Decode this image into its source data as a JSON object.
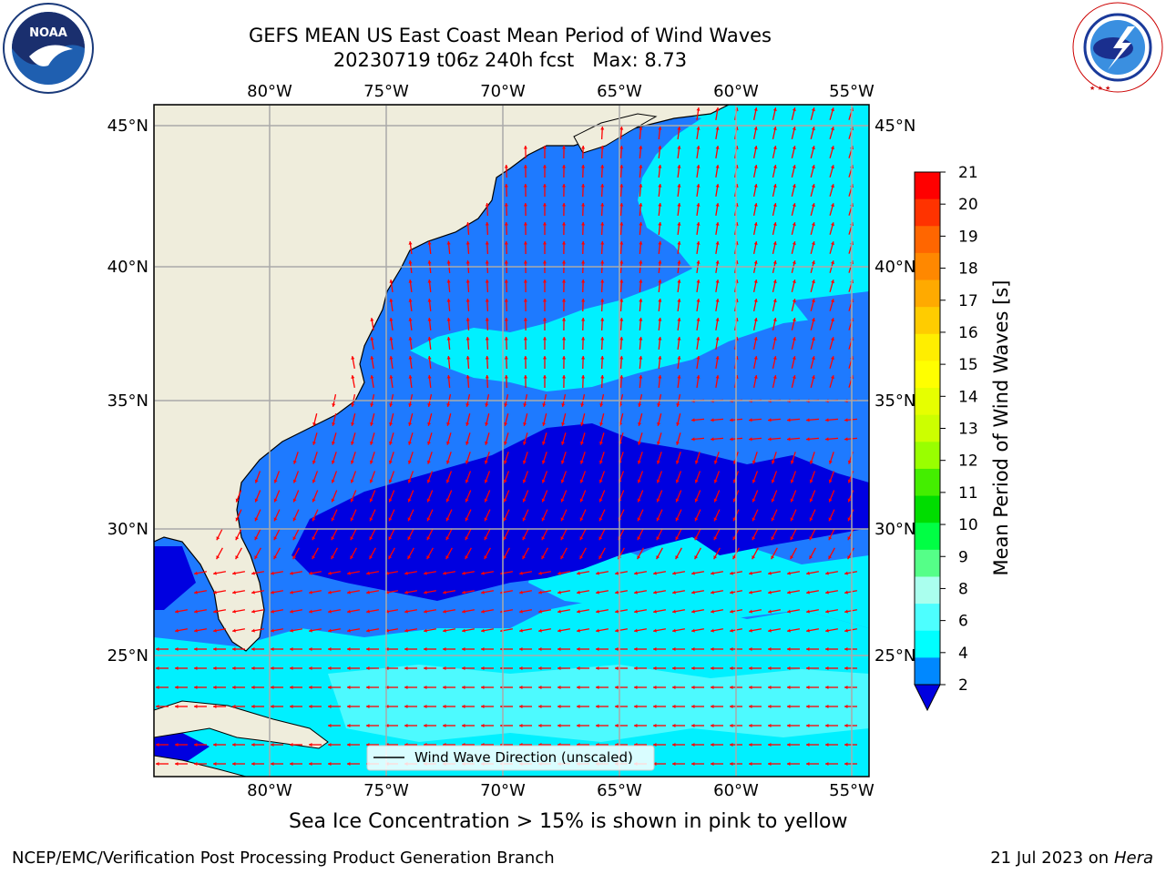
{
  "header": {
    "title": "GEFS MEAN US East Coast Mean Period of Wind Waves",
    "subtitle": "20230719 t06z 240h fcst   Max: 8.73"
  },
  "logos": {
    "left_text": "NOAA",
    "left_ring": "NATIONAL OCEANIC AND ATMOSPHERIC ADMINISTRATION · U.S. DEPARTMENT OF COMMERCE",
    "right_ring": "NATIONAL WEATHER SERVICE"
  },
  "map": {
    "lon_labels": [
      "80°W",
      "75°W",
      "70°W",
      "65°W",
      "60°W",
      "55°W"
    ],
    "lat_labels": [
      "45°N",
      "40°N",
      "35°N",
      "30°N",
      "25°N"
    ],
    "legend_label": "Wind Wave Direction (unscaled)",
    "colors": {
      "land": "#efeddc",
      "ocean_2_4": "#1e7aff",
      "ocean_4_6": "#00f0ff",
      "ocean_6_8": "#4dfaff",
      "ocean_below_2": "#0000e0",
      "arrow": "#ff0000",
      "grid": "#aaaaaa"
    }
  },
  "colorbar": {
    "label": "Mean Period of Wind Waves [s]",
    "ticks": [
      "21",
      "20",
      "19",
      "18",
      "17",
      "16",
      "15",
      "14",
      "13",
      "12",
      "11",
      "10",
      "9",
      "8",
      "6",
      "4",
      "2"
    ],
    "colors": [
      "#ff0000",
      "#ff3300",
      "#ff6600",
      "#ff8800",
      "#ffaa00",
      "#ffcc00",
      "#ffee00",
      "#ffff00",
      "#e6ff00",
      "#ccff00",
      "#99ff00",
      "#44ee00",
      "#00dd00",
      "#00ff44",
      "#55ff88",
      "#aaffee",
      "#4dffff",
      "#00ffff",
      "#0088ff"
    ]
  },
  "captions": {
    "sea_ice": "Sea Ice Concentration > 15% is shown in pink to yellow",
    "footer_left": "NCEP/EMC/Verification Post Processing Product Generation Branch",
    "footer_date": "21 Jul 2023 on ",
    "footer_host": "Hera"
  }
}
